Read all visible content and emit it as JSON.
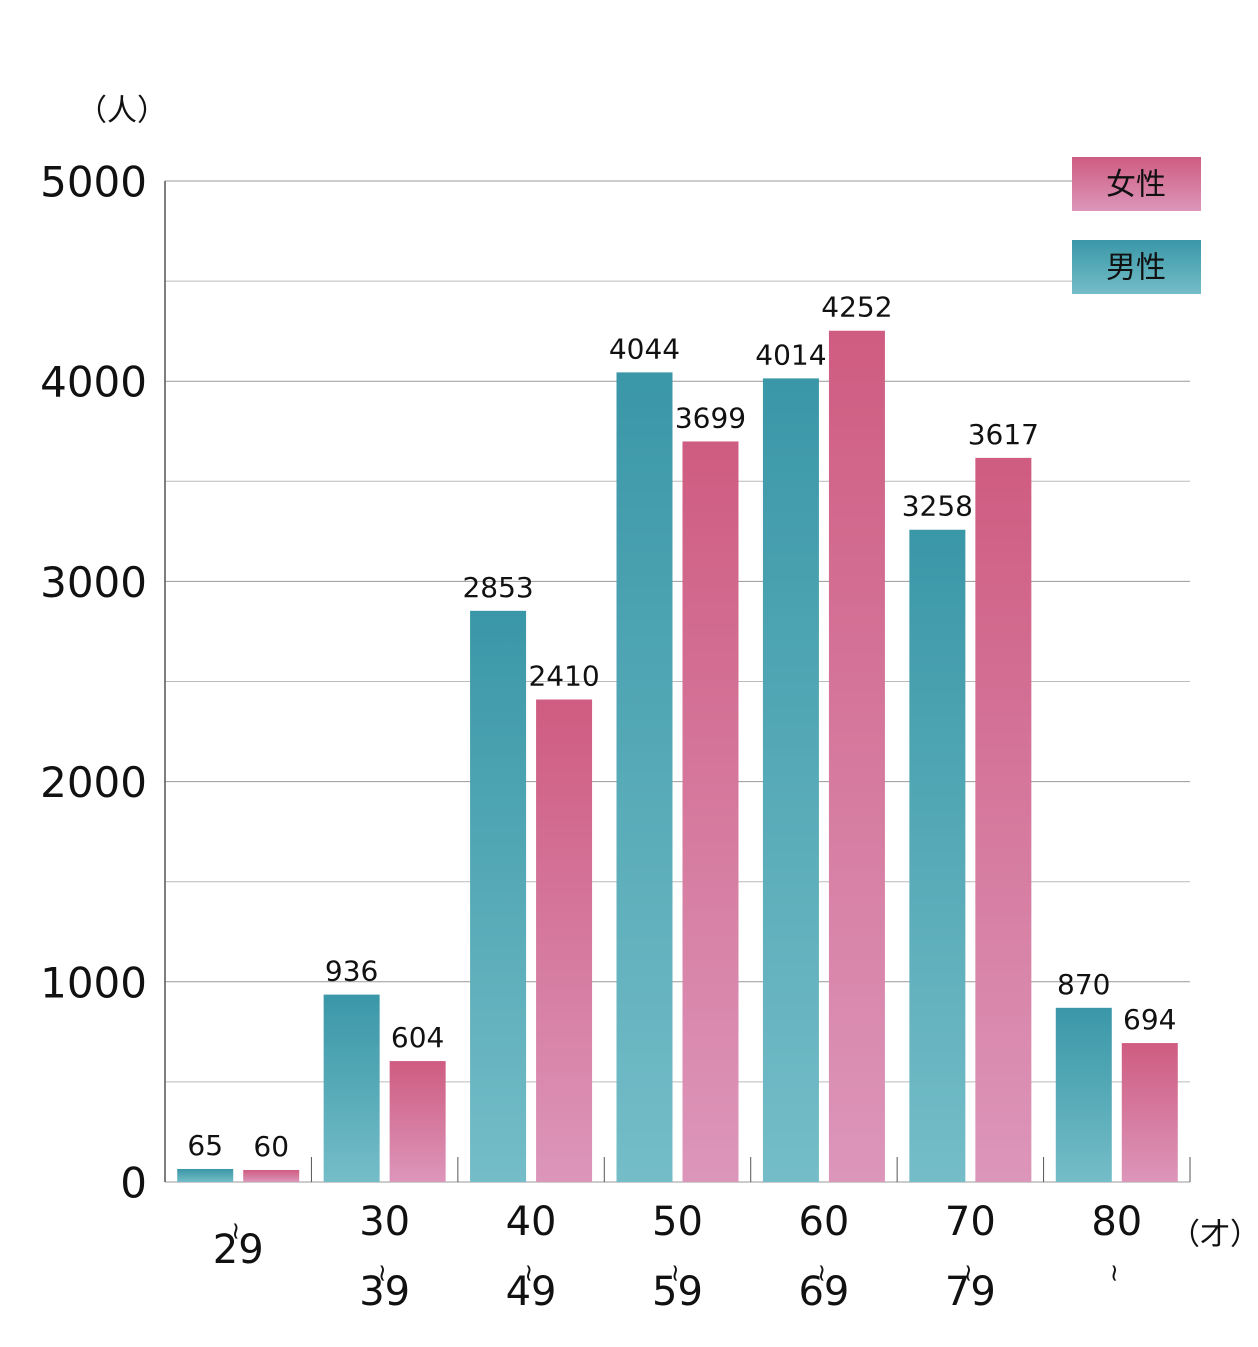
{
  "chart_data": {
    "type": "bar",
    "y_unit": "（人）",
    "x_unit": "（才）",
    "categories": [
      "~29",
      "30~39",
      "40~49",
      "50~59",
      "60~69",
      "70~79",
      "80~"
    ],
    "series": [
      {
        "name": "男性",
        "color": [
          "#3a97a7",
          "#74bdc8"
        ],
        "values": [
          65,
          936,
          2853,
          4044,
          4014,
          3258,
          870
        ]
      },
      {
        "name": "女性",
        "color": [
          "#cf5c81",
          "#dc96ba"
        ],
        "values": [
          60,
          604,
          2410,
          3699,
          4252,
          3617,
          694
        ]
      }
    ],
    "ylim": [
      0,
      5000
    ],
    "yticks": [
      0,
      1000,
      2000,
      3000,
      4000,
      5000
    ],
    "minor_yticks": [
      500,
      1500,
      2500,
      3500,
      4500
    ],
    "grid": true,
    "legend": "top-right"
  }
}
